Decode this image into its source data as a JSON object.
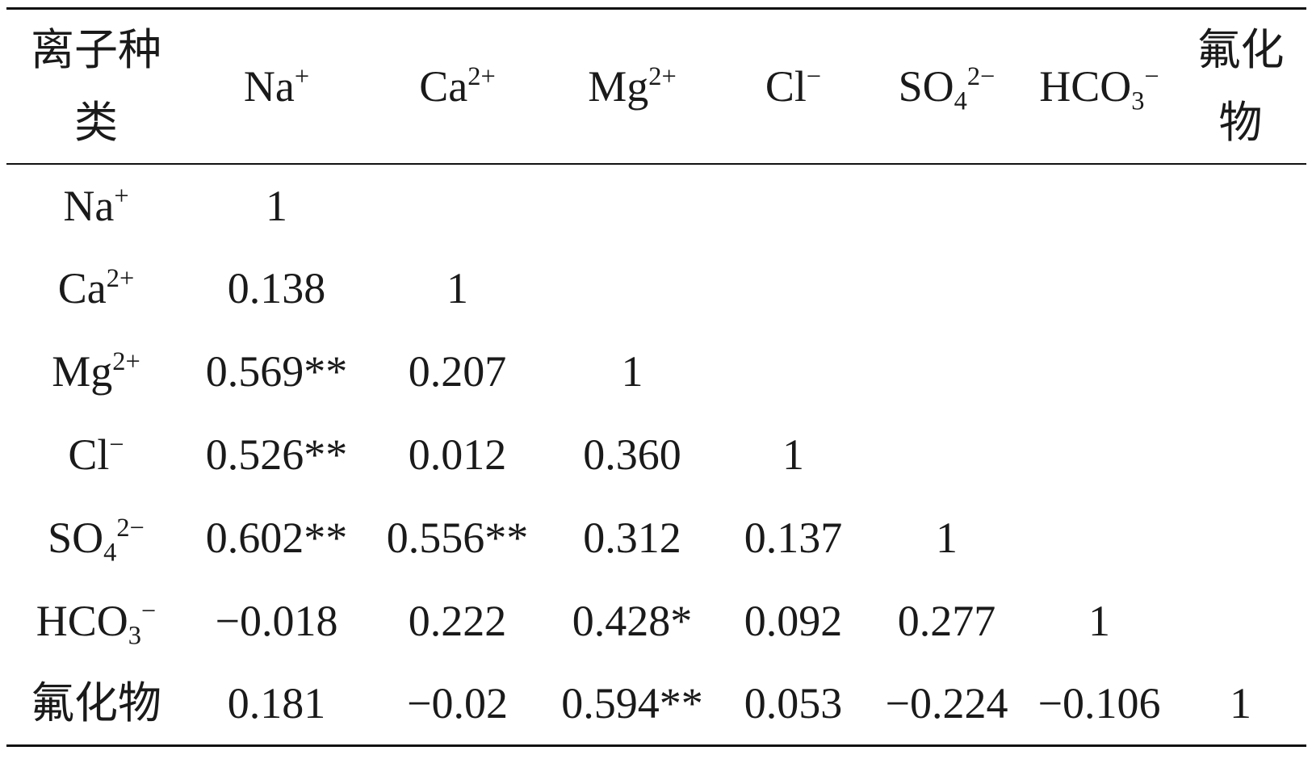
{
  "table": {
    "corner": "离子种类",
    "columns": [
      {
        "base": "Na",
        "sup": "+"
      },
      {
        "base": "Ca",
        "sup": "2+"
      },
      {
        "base": "Mg",
        "sup": "2+"
      },
      {
        "base": "Cl",
        "sup": "−"
      },
      {
        "base": "SO",
        "sub": "4",
        "sup": "2−"
      },
      {
        "base": "HCO",
        "sub": "3",
        "sup": "−"
      },
      {
        "base": "氟化物"
      }
    ],
    "rows": [
      {
        "label": {
          "base": "Na",
          "sup": "+"
        },
        "values": [
          "1"
        ]
      },
      {
        "label": {
          "base": "Ca",
          "sup": "2+"
        },
        "values": [
          "0.138",
          "1"
        ]
      },
      {
        "label": {
          "base": "Mg",
          "sup": "2+"
        },
        "values": [
          "0.569**",
          "0.207",
          "1"
        ]
      },
      {
        "label": {
          "base": "Cl",
          "sup": "−"
        },
        "values": [
          "0.526**",
          "0.012",
          "0.360",
          "1"
        ]
      },
      {
        "label": {
          "base": "SO",
          "sub": "4",
          "sup": "2−"
        },
        "values": [
          "0.602**",
          "0.556**",
          "0.312",
          "0.137",
          "1"
        ]
      },
      {
        "label": {
          "base": "HCO",
          "sub": "3",
          "sup": "−"
        },
        "values": [
          "−0.018",
          "0.222",
          "0.428*",
          "0.092",
          "0.277",
          "1"
        ]
      },
      {
        "label": {
          "base": "氟化物"
        },
        "values": [
          "0.181",
          "−0.02",
          "0.594**",
          "0.053",
          "−0.224",
          "−0.106",
          "1"
        ]
      }
    ]
  }
}
